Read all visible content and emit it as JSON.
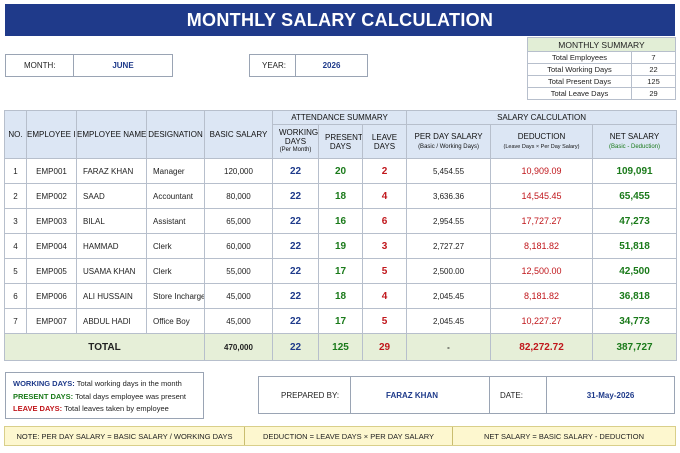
{
  "title": "MONTHLY SALARY CALCULATION",
  "month": {
    "label": "MONTH:",
    "value": "JUNE"
  },
  "year": {
    "label": "YEAR:",
    "value": "2026"
  },
  "monthly_summary": {
    "title": "MONTHLY SUMMARY",
    "rows": [
      {
        "label": "Total Employees",
        "value": "7"
      },
      {
        "label": "Total Working Days",
        "value": "22"
      },
      {
        "label": "Total Present Days",
        "value": "125"
      },
      {
        "label": "Total Leave Days",
        "value": "29"
      }
    ]
  },
  "table": {
    "group_attendance": "ATTENDANCE SUMMARY",
    "group_salary": "SALARY CALCULATION",
    "headers": {
      "no": "NO.",
      "emp_id": "EMPLOYEE ID",
      "emp_name": "EMPLOYEE NAME",
      "designation": "DESIGNATION",
      "basic": "BASIC SALARY",
      "working_days": "WORKING DAYS",
      "working_days_sub": "(Per Month)",
      "present_days": "PRESENT DAYS",
      "leave_days": "LEAVE DAYS",
      "per_day": "PER DAY SALARY",
      "per_day_sub": "(Basic / Working Days)",
      "deduction": "DEDUCTION",
      "deduction_sub": "(Leave Days × Per Day Salary)",
      "net": "NET SALARY",
      "net_sub": "(Basic - Deduction)"
    },
    "rows": [
      {
        "no": "1",
        "id": "EMP001",
        "name": "FARAZ KHAN",
        "designation": "Manager",
        "basic": "120,000",
        "working": "22",
        "present": "20",
        "leave": "2",
        "per_day": "5,454.55",
        "deduction": "10,909.09",
        "net": "109,091"
      },
      {
        "no": "2",
        "id": "EMP002",
        "name": "SAAD",
        "designation": "Accountant",
        "basic": "80,000",
        "working": "22",
        "present": "18",
        "leave": "4",
        "per_day": "3,636.36",
        "deduction": "14,545.45",
        "net": "65,455"
      },
      {
        "no": "3",
        "id": "EMP003",
        "name": "BILAL",
        "designation": "Assistant",
        "basic": "65,000",
        "working": "22",
        "present": "16",
        "leave": "6",
        "per_day": "2,954.55",
        "deduction": "17,727.27",
        "net": "47,273"
      },
      {
        "no": "4",
        "id": "EMP004",
        "name": "HAMMAD",
        "designation": "Clerk",
        "basic": "60,000",
        "working": "22",
        "present": "19",
        "leave": "3",
        "per_day": "2,727.27",
        "deduction": "8,181.82",
        "net": "51,818"
      },
      {
        "no": "5",
        "id": "EMP005",
        "name": "USAMA KHAN",
        "designation": "Clerk",
        "basic": "55,000",
        "working": "22",
        "present": "17",
        "leave": "5",
        "per_day": "2,500.00",
        "deduction": "12,500.00",
        "net": "42,500"
      },
      {
        "no": "6",
        "id": "EMP006",
        "name": "ALI HUSSAIN",
        "designation": "Store Incharge",
        "basic": "45,000",
        "working": "22",
        "present": "18",
        "leave": "4",
        "per_day": "2,045.45",
        "deduction": "8,181.82",
        "net": "36,818"
      },
      {
        "no": "7",
        "id": "EMP007",
        "name": "ABDUL HADI",
        "designation": "Office Boy",
        "basic": "45,000",
        "working": "22",
        "present": "17",
        "leave": "5",
        "per_day": "2,045.45",
        "deduction": "10,227.27",
        "net": "34,773"
      }
    ],
    "total": {
      "label": "TOTAL",
      "basic": "470,000",
      "working": "22",
      "present": "125",
      "leave": "29",
      "per_day": "-",
      "deduction": "82,272.72",
      "net": "387,727"
    }
  },
  "legend": [
    {
      "key": "WORKING DAYS:",
      "text": "Total working days in the month",
      "color": "#1e3a8a"
    },
    {
      "key": "PRESENT DAYS:",
      "text": "Total days employee was present",
      "color": "#1a7a1a"
    },
    {
      "key": "LEAVE DAYS:",
      "text": "Total leaves taken by employee",
      "color": "#c0161b"
    }
  ],
  "prepared_by": {
    "label": "PREPARED BY:",
    "value": "FARAZ KHAN"
  },
  "date": {
    "label": "DATE:",
    "value": "31-May-2026"
  },
  "notes": {
    "n1": "NOTE:  PER DAY SALARY = BASIC SALARY / WORKING DAYS",
    "n2": "DEDUCTION = LEAVE DAYS × PER DAY SALARY",
    "n3": "NET SALARY = BASIC SALARY - DEDUCTION"
  }
}
